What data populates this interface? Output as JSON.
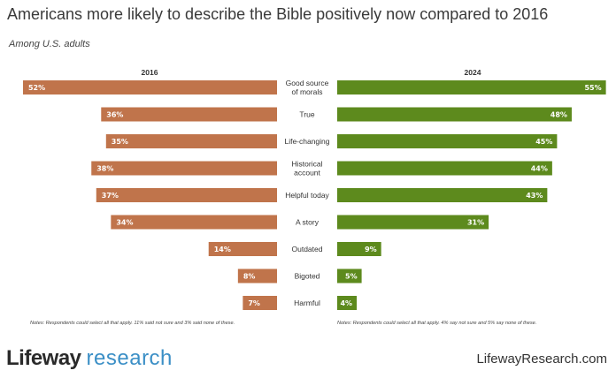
{
  "chart_data": {
    "type": "bar",
    "title": "Americans more likely to describe the Bible positively now compared to 2016",
    "subtitle": "Among U.S. adults",
    "categories": [
      [
        "Good source",
        "of morals"
      ],
      [
        "True"
      ],
      [
        "Life-changing"
      ],
      [
        "Historical",
        "account"
      ],
      [
        "Helpful today"
      ],
      [
        "A story"
      ],
      [
        "Outdated"
      ],
      [
        "Bigoted"
      ],
      [
        "Harmful"
      ]
    ],
    "series": [
      {
        "name": "2016",
        "values": [
          52,
          36,
          35,
          38,
          37,
          34,
          14,
          8,
          7
        ],
        "color": "#c0744b"
      },
      {
        "name": "2024",
        "values": [
          55,
          48,
          45,
          44,
          43,
          31,
          9,
          5,
          4
        ],
        "color": "#5d8a1d"
      }
    ],
    "value_suffix": "%",
    "notes": [
      "Notes: Respondents could select all that apply. 11% said not sure and 3% said none of these.",
      "Notes: Respondents could select all that apply. 4% say not sure and 5% say none of these."
    ],
    "grid": false
  },
  "footer": {
    "logo_bold": "Lifeway",
    "logo_light": "research",
    "website": "LifewayResearch.com"
  }
}
